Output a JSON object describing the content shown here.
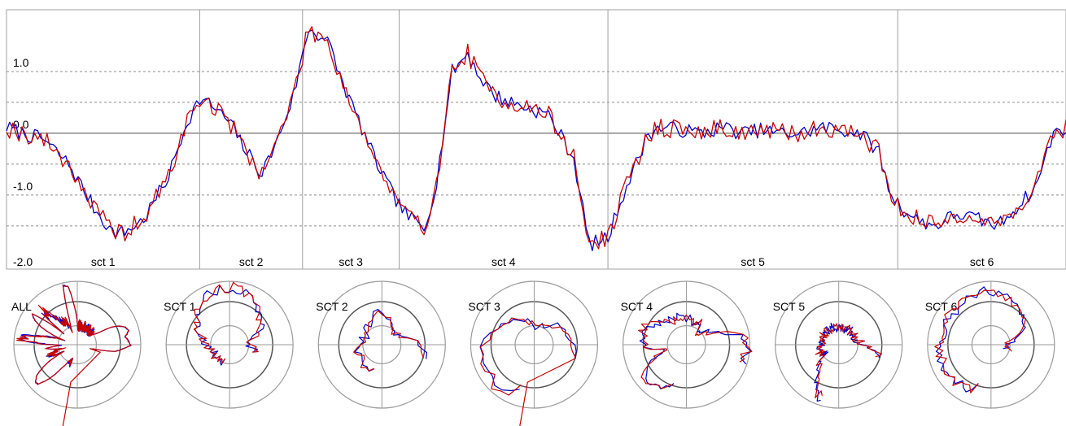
{
  "colors": {
    "series_a": "#0000c8",
    "series_b": "#c80000",
    "grid_major": "#a0a0a0",
    "grid_dashed": "#8c8c8c",
    "zero_line": "#707070",
    "ring_dark": "#555555",
    "ring_light": "#9a9a9a"
  },
  "chart_data": [
    {
      "type": "line",
      "title": "",
      "ylim": [
        -2.2,
        2.0
      ],
      "y_ticks": [
        {
          "value": 1.0,
          "label": "1.0"
        },
        {
          "value": 0.0,
          "label": "0.0"
        },
        {
          "value": -1.0,
          "label": "-1.0"
        },
        {
          "value": -2.0,
          "label": "-2.0"
        }
      ],
      "dashed_levels": [
        1.0,
        0.5,
        -0.5,
        -1.0,
        -1.5
      ],
      "grid": true,
      "sections": [
        {
          "label": "sct 1",
          "start": 0,
          "end": 62
        },
        {
          "label": "sct 2",
          "start": 62,
          "end": 95
        },
        {
          "label": "sct 3",
          "start": 95,
          "end": 126
        },
        {
          "label": "sct 4",
          "start": 126,
          "end": 193
        },
        {
          "label": "sct 5",
          "start": 193,
          "end": 286
        },
        {
          "label": "sct 6",
          "start": 286,
          "end": 340
        }
      ],
      "x_range": [
        0,
        340
      ],
      "knots_x": [
        0,
        5,
        12,
        20,
        28,
        34,
        38,
        44,
        52,
        58,
        62,
        66,
        72,
        77,
        82,
        87,
        92,
        97,
        103,
        108,
        113,
        118,
        124,
        128,
        134,
        138,
        143,
        148,
        152,
        157,
        162,
        168,
        174,
        182,
        187,
        193,
        197,
        202,
        206,
        211,
        217,
        223,
        230,
        236,
        242,
        248,
        255,
        262,
        268,
        274,
        280,
        283,
        287,
        292,
        298,
        305,
        312,
        318,
        324,
        330,
        336,
        340
      ],
      "knots_y": [
        0.1,
        0.0,
        -0.1,
        -0.5,
        -1.2,
        -1.6,
        -1.6,
        -1.4,
        -0.7,
        0.2,
        0.55,
        0.45,
        0.15,
        -0.3,
        -0.65,
        -0.1,
        0.6,
        1.7,
        1.5,
        0.8,
        0.2,
        -0.4,
        -1.0,
        -1.3,
        -1.55,
        -0.8,
        1.0,
        1.3,
        0.9,
        0.6,
        0.5,
        0.4,
        0.3,
        -0.4,
        -1.8,
        -1.7,
        -1.1,
        -0.5,
        0.0,
        0.1,
        0.05,
        0.0,
        0.1,
        0.0,
        0.05,
        0.0,
        0.0,
        0.1,
        0.05,
        0.0,
        -0.3,
        -0.9,
        -1.2,
        -1.4,
        -1.5,
        -1.3,
        -1.4,
        -1.5,
        -1.2,
        -0.9,
        0.0,
        0.1
      ],
      "series": [
        {
          "color": "#0000c8",
          "noise": 0.12,
          "seed": 7
        },
        {
          "color": "#c80000",
          "noise": 0.16,
          "seed": 19
        }
      ]
    },
    {
      "type": "polar",
      "panels": [
        {
          "label": "ALL",
          "start": 0,
          "end": 340,
          "spike_angle_deg": 100,
          "spike_len": 1.6
        },
        {
          "label": "SCT 1",
          "start": 0,
          "end": 62
        },
        {
          "label": "SCT 2",
          "start": 62,
          "end": 95
        },
        {
          "label": "SCT 3",
          "start": 95,
          "end": 126,
          "spike_angle_deg": 100,
          "spike_len": 1.6
        },
        {
          "label": "SCT 4",
          "start": 126,
          "end": 193
        },
        {
          "label": "SCT 5",
          "start": 193,
          "end": 286
        },
        {
          "label": "SCT 6",
          "start": 286,
          "end": 340
        }
      ],
      "rings": [
        0.3,
        0.68,
        1.0
      ]
    }
  ]
}
